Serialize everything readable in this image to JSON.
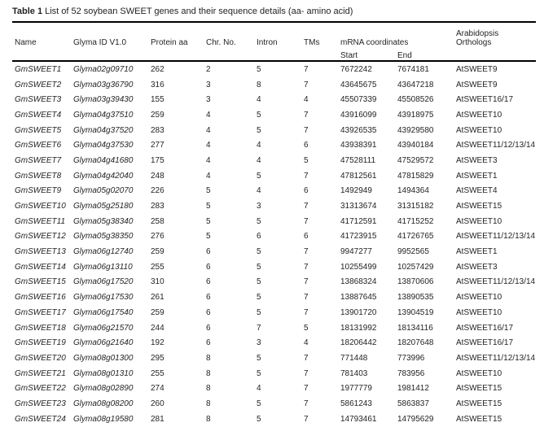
{
  "caption": {
    "label": "Table 1",
    "text": "List of 52 soybean SWEET genes and their sequence details (aa- amino acid)"
  },
  "table": {
    "headers": {
      "name": "Name",
      "glyma_id": "Glyma ID V1.0",
      "protein_aa": "Protein aa",
      "chr_no": "Chr. No.",
      "intron": "Intron",
      "tms": "TMs",
      "mrna_coordinates": "mRNA coordinates",
      "arabidopsis_orthologs": "Arabidopsis Orthologs"
    },
    "subheaders": {
      "start": "Start",
      "end": "End"
    },
    "row_fields": [
      "name",
      "glyma_id",
      "protein_aa",
      "chr_no",
      "intron",
      "tms",
      "mrna_start",
      "mrna_end",
      "arabidopsis_ortholog"
    ],
    "rows": [
      [
        "GmSWEET1",
        "Glyma02g09710",
        "262",
        "2",
        "5",
        "7",
        "7672242",
        "7674181",
        "AtSWEET9"
      ],
      [
        "GmSWEET2",
        "Glyma03g36790",
        "316",
        "3",
        "8",
        "7",
        "43645675",
        "43647218",
        "AtSWEET9"
      ],
      [
        "GmSWEET3",
        "Glyma03g39430",
        "155",
        "3",
        "4",
        "4",
        "45507339",
        "45508526",
        "AtSWEET16/17"
      ],
      [
        "GmSWEET4",
        "Glyma04g37510",
        "259",
        "4",
        "5",
        "7",
        "43916099",
        "43918975",
        "AtSWEET10"
      ],
      [
        "GmSWEET5",
        "Glyma04g37520",
        "283",
        "4",
        "5",
        "7",
        "43926535",
        "43929580",
        "AtSWEET10"
      ],
      [
        "GmSWEET6",
        "Glyma04g37530",
        "277",
        "4",
        "4",
        "6",
        "43938391",
        "43940184",
        "AtSWEET11/12/13/14"
      ],
      [
        "GmSWEET7",
        "Glyma04g41680",
        "175",
        "4",
        "4",
        "5",
        "47528111",
        "47529572",
        "AtSWEET3"
      ],
      [
        "GmSWEET8",
        "Glyma04g42040",
        "248",
        "4",
        "5",
        "7",
        "47812561",
        "47815829",
        "AtSWEET1"
      ],
      [
        "GmSWEET9",
        "Glyma05g02070",
        "226",
        "5",
        "4",
        "6",
        "1492949",
        "1494364",
        "AtSWEET4"
      ],
      [
        "GmSWEET10",
        "Glyma05g25180",
        "283",
        "5",
        "3",
        "7",
        "31313674",
        "31315182",
        "AtSWEET15"
      ],
      [
        "GmSWEET11",
        "Glyma05g38340",
        "258",
        "5",
        "5",
        "7",
        "41712591",
        "41715252",
        "AtSWEET10"
      ],
      [
        "GmSWEET12",
        "Glyma05g38350",
        "276",
        "5",
        "6",
        "6",
        "41723915",
        "41726765",
        "AtSWEET11/12/13/14"
      ],
      [
        "GmSWEET13",
        "Glyma06g12740",
        "259",
        "6",
        "5",
        "7",
        "9947277",
        "9952565",
        "AtSWEET1"
      ],
      [
        "GmSWEET14",
        "Glyma06g13110",
        "255",
        "6",
        "5",
        "7",
        "10255499",
        "10257429",
        "AtSWEET3"
      ],
      [
        "GmSWEET15",
        "Glyma06g17520",
        "310",
        "6",
        "5",
        "7",
        "13868324",
        "13870606",
        "AtSWEET11/12/13/14"
      ],
      [
        "GmSWEET16",
        "Glyma06g17530",
        "261",
        "6",
        "5",
        "7",
        "13887645",
        "13890535",
        "AtSWEET10"
      ],
      [
        "GmSWEET17",
        "Glyma06g17540",
        "259",
        "6",
        "5",
        "7",
        "13901720",
        "13904519",
        "AtSWEET10"
      ],
      [
        "GmSWEET18",
        "Glyma06g21570",
        "244",
        "6",
        "7",
        "5",
        "18131992",
        "18134116",
        "AtSWEET16/17"
      ],
      [
        "GmSWEET19",
        "Glyma06g21640",
        "192",
        "6",
        "3",
        "4",
        "18206442",
        "18207648",
        "AtSWEET16/17"
      ],
      [
        "GmSWEET20",
        "Glyma08g01300",
        "295",
        "8",
        "5",
        "7",
        "771448",
        "773996",
        "AtSWEET11/12/13/14"
      ],
      [
        "GmSWEET21",
        "Glyma08g01310",
        "255",
        "8",
        "5",
        "7",
        "781403",
        "783956",
        "AtSWEET10"
      ],
      [
        "GmSWEET22",
        "Glyma08g02890",
        "274",
        "8",
        "4",
        "7",
        "1977779",
        "1981412",
        "AtSWEET15"
      ],
      [
        "GmSWEET23",
        "Glyma08g08200",
        "260",
        "8",
        "5",
        "7",
        "5861243",
        "5863837",
        "AtSWEET15"
      ],
      [
        "GmSWEET24",
        "Glyma08g19580",
        "281",
        "8",
        "5",
        "7",
        "14793461",
        "14795629",
        "AtSWEET15"
      ]
    ]
  },
  "colors": {
    "text": "#231f20",
    "rule": "#000000",
    "background": "#ffffff"
  }
}
